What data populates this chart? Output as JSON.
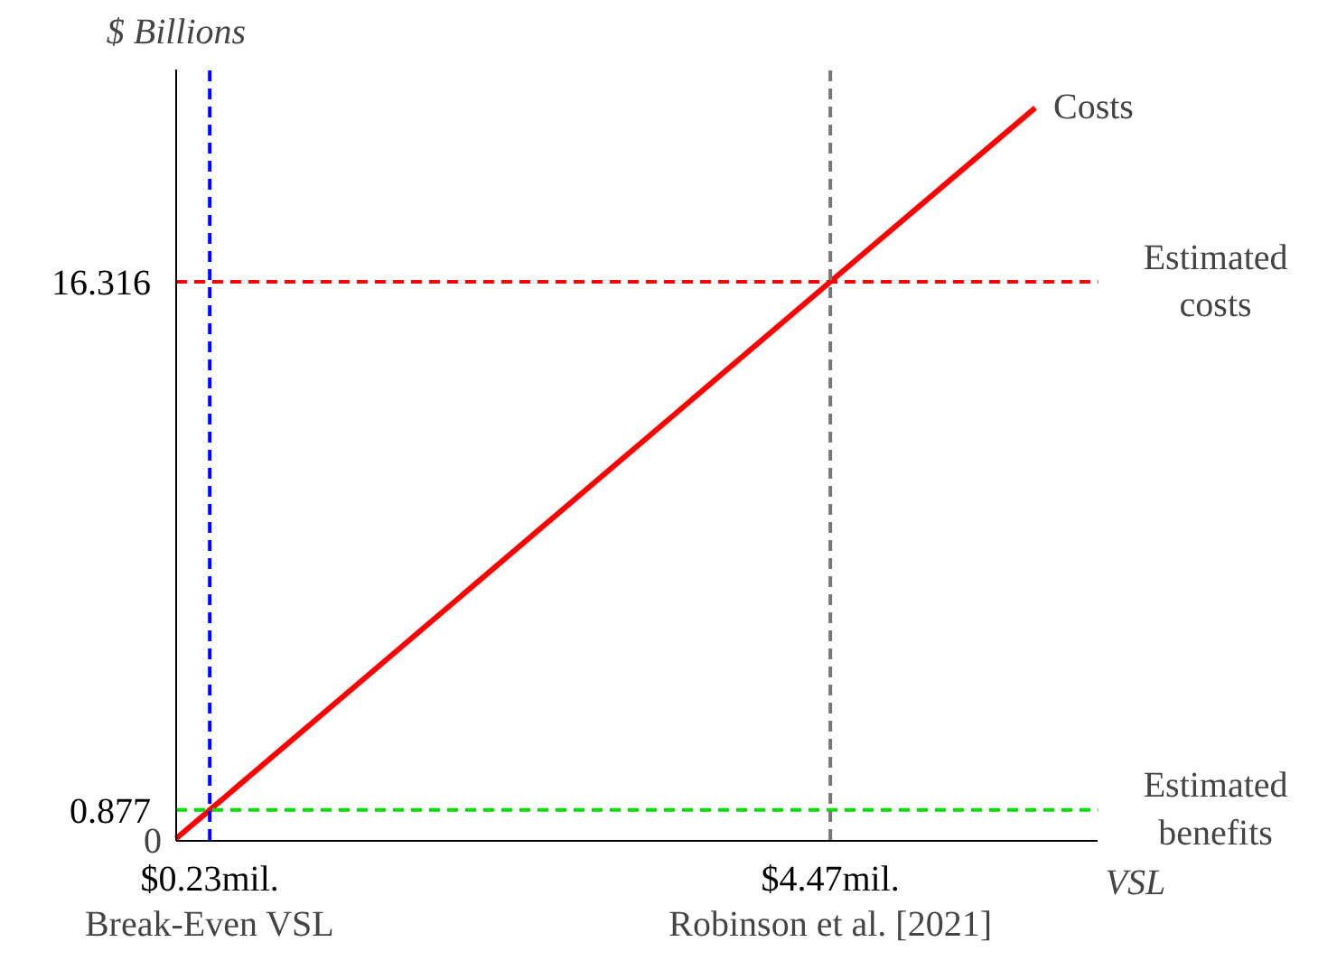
{
  "chart_data": {
    "type": "line",
    "xlabel": "VSL",
    "ylabel": "$ Billions",
    "xlim": [
      0,
      6.3
    ],
    "ylim": [
      0,
      22.5
    ],
    "xticks": [
      {
        "value": 0.23,
        "label": "$0.23mil."
      },
      {
        "value": 4.47,
        "label": "$4.47mil."
      }
    ],
    "yticks": [
      0.877,
      16.316
    ],
    "grid": false,
    "line_style": "solid",
    "marker": "none",
    "series": [
      {
        "name": "Costs",
        "color": "#ff0000",
        "x": [
          0,
          0.23,
          4.47,
          5.87
        ],
        "values": [
          0.04,
          0.877,
          16.316,
          21.4
        ]
      }
    ],
    "ref_lines": [
      {
        "axis": "y",
        "value": 16.316,
        "label": "Estimated costs",
        "color": "#ff0000",
        "line_style": "dashed"
      },
      {
        "axis": "y",
        "value": 0.877,
        "label": "Estimated benefits",
        "color": "#00e000",
        "line_style": "dashed"
      },
      {
        "axis": "x",
        "value": 0.23,
        "label": "Break-Even VSL",
        "color": "#0000ff",
        "line_style": "dashed"
      },
      {
        "axis": "x",
        "value": 4.47,
        "label": "Robinson et al. [2021]",
        "color": "#777777",
        "line_style": "dashed"
      }
    ],
    "annotations": [
      {
        "text": "0",
        "x": 0,
        "y": 0
      }
    ]
  }
}
